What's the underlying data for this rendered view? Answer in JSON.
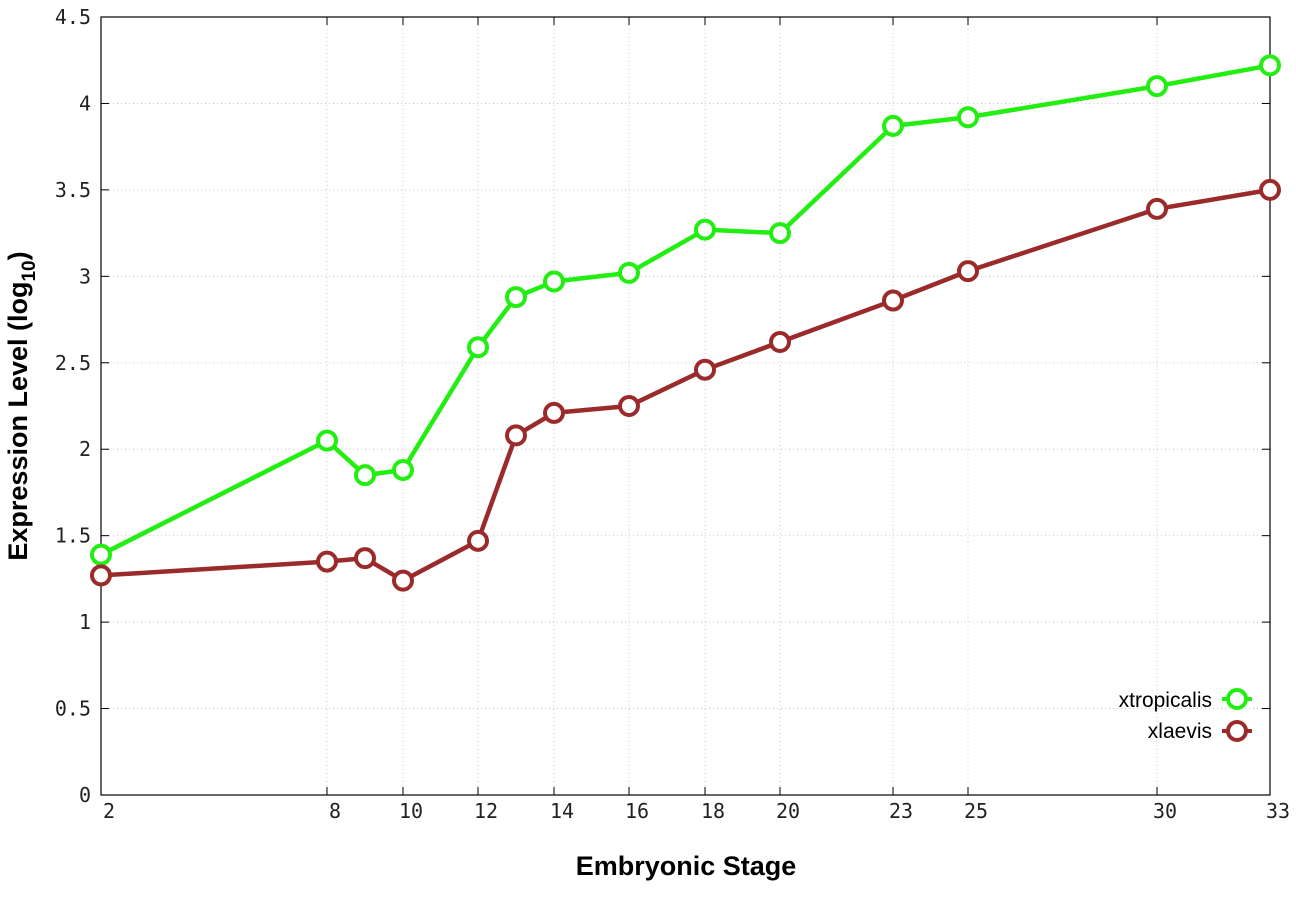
{
  "chart_data": {
    "type": "line",
    "xlabel": "Embryonic Stage",
    "ylabel": {
      "main": "Expression Level (log",
      "subscript": "10",
      "close": ")"
    },
    "x_ticks": [
      "2",
      "8",
      "10",
      "12",
      "14",
      "16",
      "18",
      "20",
      "23",
      "25",
      "30",
      "33"
    ],
    "y_ticks": [
      "0",
      "0.5",
      "1",
      "1.5",
      "2",
      "2.5",
      "3",
      "3.5",
      "4",
      "4.5"
    ],
    "x_scale": "stage (non-uniform spacing)",
    "ylim": [
      0,
      4.5
    ],
    "grid": true,
    "legend_position": "bottom-right",
    "x": [
      2,
      8,
      9,
      10,
      12,
      13,
      14,
      16,
      18,
      20,
      23,
      25,
      30,
      33
    ],
    "series": [
      {
        "name": "xtropicalis",
        "color": "#22ee11",
        "marker": "open-circle",
        "values": [
          1.39,
          2.05,
          1.85,
          1.88,
          2.59,
          2.88,
          2.97,
          3.02,
          3.27,
          3.25,
          3.87,
          3.92,
          4.1,
          4.22
        ]
      },
      {
        "name": "xlaevis",
        "color": "#9b2a2a",
        "marker": "open-circle",
        "values": [
          1.27,
          1.35,
          1.37,
          1.24,
          1.47,
          2.08,
          2.21,
          2.25,
          2.46,
          2.62,
          2.86,
          3.03,
          3.39,
          3.5
        ]
      }
    ]
  }
}
